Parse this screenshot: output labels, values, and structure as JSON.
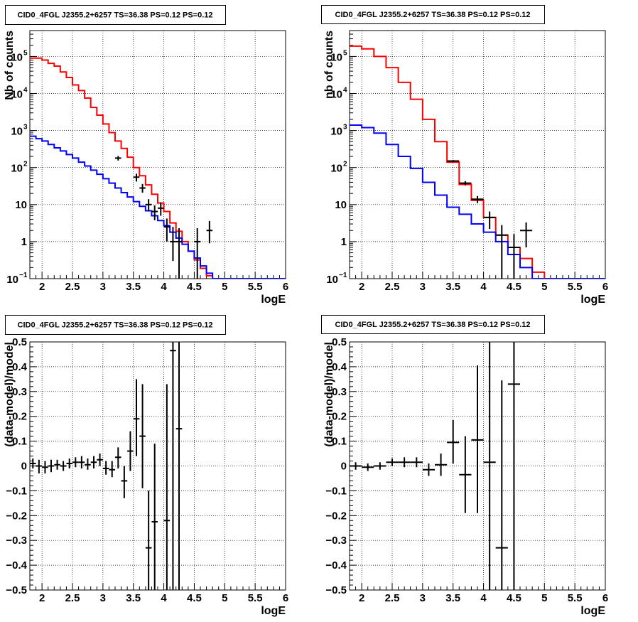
{
  "chart_data": [
    {
      "type": "histogram",
      "title": "CID0_4FGL J2355.2+6257 TS=36.38 PS=0.12 PS=0.12",
      "xlabel": "logE",
      "ylabel": "Nb of counts",
      "xlim": [
        1.8,
        6.0
      ],
      "ylim": [
        0.1,
        500000
      ],
      "yscale": "log",
      "grid": true,
      "xticks": [
        "2",
        "2.5",
        "3",
        "3.5",
        "4",
        "4.5",
        "5",
        "5.5",
        "6"
      ],
      "yticks": [
        {
          "value": 0.1,
          "base": "10",
          "exp": "−1"
        },
        {
          "value": 1,
          "label": "1"
        },
        {
          "value": 10,
          "label": "10"
        },
        {
          "value": 100,
          "base": "10",
          "exp": "2"
        },
        {
          "value": 1000,
          "base": "10",
          "exp": "3"
        },
        {
          "value": 10000,
          "base": "10",
          "exp": "4"
        },
        {
          "value": 100000,
          "base": "10",
          "exp": "5"
        }
      ],
      "bin_edges": [
        1.8,
        1.9,
        2.0,
        2.1,
        2.2,
        2.3,
        2.4,
        2.5,
        2.6,
        2.7,
        2.8,
        2.9,
        3.0,
        3.1,
        3.2,
        3.3,
        3.4,
        3.5,
        3.6,
        3.7,
        3.8,
        3.9,
        4.0,
        4.1,
        4.2,
        4.3,
        4.4,
        4.5,
        4.6,
        4.7,
        4.8,
        4.9,
        5.0,
        5.1,
        5.2,
        5.3,
        5.4,
        5.5,
        5.6,
        5.7,
        5.8,
        5.9,
        6.0
      ],
      "series": [
        {
          "color": "#ff0000",
          "style": "step",
          "values": [
            90000,
            90000,
            80000,
            65000,
            55000,
            38000,
            27000,
            17000,
            12000,
            7500,
            4200,
            2600,
            1500,
            880,
            520,
            330,
            190,
            100,
            60,
            34,
            19,
            11,
            6.5,
            3.2,
            1.9,
            1.0,
            0.55,
            0.32,
            0.19,
            0.12,
            0.1,
            0.1,
            0.1,
            0.1,
            0.1,
            0.1,
            0.1,
            0.1,
            0.1,
            0.1,
            0.1,
            0.1
          ]
        },
        {
          "color": "#0000ff",
          "style": "step",
          "values": [
            700,
            600,
            520,
            420,
            340,
            280,
            225,
            180,
            140,
            110,
            85,
            66,
            50,
            38,
            28,
            21,
            16,
            12,
            9,
            6.8,
            5.0,
            3.7,
            2.7,
            1.8,
            1.25,
            0.85,
            0.55,
            0.36,
            0.22,
            0.14,
            0.1,
            0.1,
            0.1,
            0.1,
            0.1,
            0.1,
            0.1,
            0.1,
            0.1,
            0.1,
            0.1,
            0.1
          ]
        },
        {
          "color": "#000000",
          "style": "points",
          "points": [
            {
              "x": 3.25,
              "y": 180,
              "xerr": 0.05,
              "ylo": 155,
              "yhi": 205
            },
            {
              "x": 3.55,
              "y": 55,
              "xerr": 0.05,
              "ylo": 42,
              "yhi": 68
            },
            {
              "x": 3.65,
              "y": 28,
              "xerr": 0.05,
              "ylo": 21,
              "yhi": 36
            },
            {
              "x": 3.75,
              "y": 10,
              "xerr": 0.05,
              "ylo": 6.5,
              "yhi": 14
            },
            {
              "x": 3.85,
              "y": 6.5,
              "xerr": 0.05,
              "ylo": 3.8,
              "yhi": 9.5
            },
            {
              "x": 3.95,
              "y": 8,
              "xerr": 0.05,
              "ylo": 5,
              "yhi": 11.5
            },
            {
              "x": 4.05,
              "y": 2.5,
              "xerr": 0.05,
              "ylo": 1.0,
              "yhi": 4.2
            },
            {
              "x": 4.15,
              "y": 1.0,
              "xerr": 0.05,
              "ylo": 0.3,
              "yhi": 2.5
            },
            {
              "x": 4.25,
              "y": 1.0,
              "xerr": 0.05,
              "ylo": 0.1,
              "yhi": 2.3
            },
            {
              "x": 4.55,
              "y": 1.0,
              "xerr": 0.05,
              "ylo": 0.1,
              "yhi": 2.3
            },
            {
              "x": 4.75,
              "y": 2.0,
              "xerr": 0.05,
              "ylo": 0.9,
              "yhi": 3.6
            }
          ]
        }
      ]
    },
    {
      "type": "histogram",
      "title": "CID0_4FGL J2355.2+6257 TS=36.38 PS=0.12 PS=0.12",
      "xlabel": "logE",
      "ylabel": "nb of counts",
      "xlim": [
        1.8,
        6.0
      ],
      "ylim": [
        0.1,
        500000
      ],
      "yscale": "log",
      "grid": true,
      "xticks": [
        "2",
        "2.5",
        "3",
        "3.5",
        "4",
        "4.5",
        "5",
        "5.5",
        "6"
      ],
      "yticks": [
        {
          "value": 0.1,
          "base": "10",
          "exp": "−1"
        },
        {
          "value": 1,
          "label": "1"
        },
        {
          "value": 10,
          "label": "10"
        },
        {
          "value": 100,
          "base": "10",
          "exp": "2"
        },
        {
          "value": 1000,
          "base": "10",
          "exp": "3"
        },
        {
          "value": 10000,
          "base": "10",
          "exp": "4"
        },
        {
          "value": 100000,
          "base": "10",
          "exp": "5"
        }
      ],
      "bin_edges": [
        1.8,
        2.0,
        2.2,
        2.4,
        2.6,
        2.8,
        3.0,
        3.2,
        3.4,
        3.6,
        3.8,
        4.0,
        4.2,
        4.4,
        4.6,
        4.8,
        5.0,
        5.2,
        5.4,
        5.6,
        5.8,
        6.0
      ],
      "series": [
        {
          "color": "#ff0000",
          "style": "step",
          "values": [
            190000,
            160000,
            100000,
            50000,
            20000,
            7000,
            2000,
            500,
            140,
            35,
            13,
            4.5,
            1.5,
            0.7,
            0.35,
            0.15,
            0.1,
            0.1,
            0.1,
            0.1,
            0.1
          ]
        },
        {
          "color": "#0000ff",
          "style": "step",
          "values": [
            1400,
            1200,
            850,
            420,
            200,
            95,
            40,
            18,
            8.5,
            5.5,
            3.0,
            1.8,
            1.0,
            0.45,
            0.2,
            0.1,
            0.1,
            0.1,
            0.1,
            0.1,
            0.1
          ]
        },
        {
          "color": "#000000",
          "style": "points",
          "points": [
            {
              "x": 3.5,
              "y": 150,
              "xerr": 0.1,
              "ylo": 140,
              "yhi": 160
            },
            {
              "x": 3.7,
              "y": 38,
              "xerr": 0.1,
              "ylo": 33,
              "yhi": 43
            },
            {
              "x": 3.9,
              "y": 14,
              "xerr": 0.1,
              "ylo": 11,
              "yhi": 17
            },
            {
              "x": 4.1,
              "y": 4.5,
              "xerr": 0.1,
              "ylo": 2.2,
              "yhi": 6.5
            },
            {
              "x": 4.3,
              "y": 1.5,
              "xerr": 0.1,
              "ylo": 0.1,
              "yhi": 2.8
            },
            {
              "x": 4.5,
              "y": 0.7,
              "xerr": 0.1,
              "ylo": 0.1,
              "yhi": 1.6
            },
            {
              "x": 4.7,
              "y": 2.0,
              "xerr": 0.1,
              "ylo": 0.7,
              "yhi": 3.3
            }
          ]
        }
      ]
    },
    {
      "type": "scatter",
      "title": "CID0_4FGL J2355.2+6257 TS=36.38 PS=0.12 PS=0.12",
      "xlabel": "logE",
      "ylabel": "(data-model)/model",
      "xlim": [
        1.8,
        6.0
      ],
      "ylim": [
        -0.5,
        0.5
      ],
      "grid": true,
      "xticks": [
        "2",
        "2.5",
        "3",
        "3.5",
        "4",
        "4.5",
        "5",
        "5.5",
        "6"
      ],
      "yticks": [
        "−0.5",
        "−0.4",
        "−0.3",
        "−0.2",
        "−0.1",
        "0",
        "0.1",
        "0.2",
        "0.3",
        "0.4",
        "0.5"
      ],
      "series": [
        {
          "color": "#000000",
          "style": "points",
          "points": [
            {
              "x": 1.85,
              "y": 0.01,
              "xerr": 0.05,
              "ylo": -0.01,
              "yhi": 0.03
            },
            {
              "x": 1.95,
              "y": 0.0,
              "xerr": 0.05,
              "ylo": -0.03,
              "yhi": 0.025
            },
            {
              "x": 2.05,
              "y": -0.005,
              "xerr": 0.05,
              "ylo": -0.03,
              "yhi": 0.02
            },
            {
              "x": 2.15,
              "y": 0.0,
              "xerr": 0.05,
              "ylo": -0.025,
              "yhi": 0.025
            },
            {
              "x": 2.25,
              "y": 0.005,
              "xerr": 0.05,
              "ylo": -0.015,
              "yhi": 0.025
            },
            {
              "x": 2.35,
              "y": 0.0,
              "xerr": 0.05,
              "ylo": -0.02,
              "yhi": 0.02
            },
            {
              "x": 2.45,
              "y": 0.01,
              "xerr": 0.05,
              "ylo": -0.01,
              "yhi": 0.03
            },
            {
              "x": 2.55,
              "y": 0.015,
              "xerr": 0.05,
              "ylo": -0.005,
              "yhi": 0.035
            },
            {
              "x": 2.65,
              "y": 0.015,
              "xerr": 0.05,
              "ylo": -0.01,
              "yhi": 0.04
            },
            {
              "x": 2.75,
              "y": 0.005,
              "xerr": 0.05,
              "ylo": -0.015,
              "yhi": 0.03
            },
            {
              "x": 2.85,
              "y": 0.015,
              "xerr": 0.05,
              "ylo": -0.01,
              "yhi": 0.04
            },
            {
              "x": 2.95,
              "y": 0.025,
              "xerr": 0.05,
              "ylo": 0.0,
              "yhi": 0.05
            },
            {
              "x": 3.05,
              "y": -0.01,
              "xerr": 0.05,
              "ylo": -0.035,
              "yhi": 0.02
            },
            {
              "x": 3.15,
              "y": -0.015,
              "xerr": 0.05,
              "ylo": -0.045,
              "yhi": 0.02
            },
            {
              "x": 3.25,
              "y": 0.035,
              "xerr": 0.05,
              "ylo": -0.01,
              "yhi": 0.075
            },
            {
              "x": 3.35,
              "y": -0.06,
              "xerr": 0.05,
              "ylo": -0.13,
              "yhi": 0.0
            },
            {
              "x": 3.45,
              "y": 0.06,
              "xerr": 0.05,
              "ylo": -0.02,
              "yhi": 0.14
            },
            {
              "x": 3.55,
              "y": 0.19,
              "xerr": 0.05,
              "ylo": 0.04,
              "yhi": 0.35
            },
            {
              "x": 3.65,
              "y": 0.12,
              "xerr": 0.05,
              "ylo": -0.09,
              "yhi": 0.33
            },
            {
              "x": 3.75,
              "y": -0.33,
              "xerr": 0.05,
              "ylo": -0.5,
              "yhi": -0.1
            },
            {
              "x": 3.85,
              "y": -0.225,
              "xerr": 0.05,
              "ylo": -0.5,
              "yhi": 0.09
            },
            {
              "x": 4.05,
              "y": -0.22,
              "xerr": 0.05,
              "ylo": -0.5,
              "yhi": 0.33
            },
            {
              "x": 4.15,
              "y": 0.465,
              "xerr": 0.05,
              "ylo": -0.5,
              "yhi": 0.5
            },
            {
              "x": 4.25,
              "y": 0.15,
              "xerr": 0.05,
              "ylo": -0.5,
              "yhi": 0.5
            }
          ]
        }
      ]
    },
    {
      "type": "scatter",
      "title": "CID0_4FGL J2355.2+6257 TS=36.38 PS=0.12 PS=0.12",
      "xlabel": "logE",
      "ylabel": "(data-model)/model",
      "xlim": [
        1.8,
        6.0
      ],
      "ylim": [
        -0.5,
        0.5
      ],
      "grid": true,
      "xticks": [
        "2",
        "2.5",
        "3",
        "3.5",
        "4",
        "4.5",
        "5",
        "5.5",
        "6"
      ],
      "yticks": [
        "−0.5",
        "−0.4",
        "−0.3",
        "−0.2",
        "−0.1",
        "0",
        "0.1",
        "0.2",
        "0.3",
        "0.4",
        "0.5"
      ],
      "series": [
        {
          "color": "#000000",
          "style": "points",
          "points": [
            {
              "x": 1.9,
              "y": 0.0,
              "xerr": 0.1,
              "ylo": -0.015,
              "yhi": 0.015
            },
            {
              "x": 2.1,
              "y": -0.005,
              "xerr": 0.1,
              "ylo": -0.02,
              "yhi": 0.01
            },
            {
              "x": 2.3,
              "y": 0.0,
              "xerr": 0.1,
              "ylo": -0.015,
              "yhi": 0.015
            },
            {
              "x": 2.5,
              "y": 0.015,
              "xerr": 0.1,
              "ylo": 0.0,
              "yhi": 0.03
            },
            {
              "x": 2.7,
              "y": 0.015,
              "xerr": 0.1,
              "ylo": -0.005,
              "yhi": 0.035
            },
            {
              "x": 2.9,
              "y": 0.015,
              "xerr": 0.1,
              "ylo": -0.005,
              "yhi": 0.035
            },
            {
              "x": 3.1,
              "y": -0.015,
              "xerr": 0.1,
              "ylo": -0.04,
              "yhi": 0.01
            },
            {
              "x": 3.3,
              "y": 0.005,
              "xerr": 0.1,
              "ylo": -0.04,
              "yhi": 0.05
            },
            {
              "x": 3.5,
              "y": 0.095,
              "xerr": 0.1,
              "ylo": 0.01,
              "yhi": 0.185
            },
            {
              "x": 3.7,
              "y": -0.035,
              "xerr": 0.1,
              "ylo": -0.19,
              "yhi": 0.12
            },
            {
              "x": 3.9,
              "y": 0.105,
              "xerr": 0.1,
              "ylo": -0.19,
              "yhi": 0.405
            },
            {
              "x": 4.1,
              "y": 0.015,
              "xerr": 0.1,
              "ylo": -0.5,
              "yhi": 0.5
            },
            {
              "x": 4.3,
              "y": -0.33,
              "xerr": 0.1,
              "ylo": -0.5,
              "yhi": 0.345
            },
            {
              "x": 4.5,
              "y": 0.33,
              "xerr": 0.1,
              "ylo": -0.5,
              "yhi": 0.5
            }
          ]
        }
      ]
    }
  ]
}
